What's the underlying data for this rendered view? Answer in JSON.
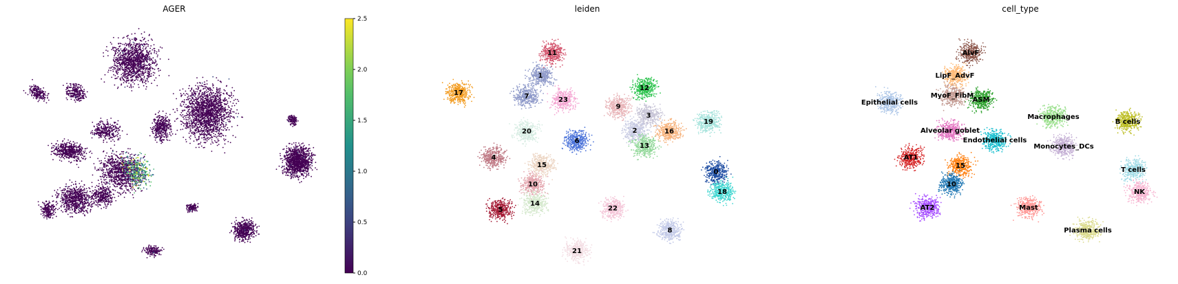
{
  "chart_data": [
    {
      "type": "scatter",
      "title": "AGER",
      "colormap": "viridis",
      "colorbar": {
        "min": 0.0,
        "max": 2.5,
        "ticks": [
          "0.0",
          "0.5",
          "1.0",
          "1.5",
          "2.0",
          "2.5"
        ]
      },
      "grid": false
    },
    {
      "type": "scatter",
      "title": "leiden",
      "grid": false,
      "clusters": [
        {
          "label": "0",
          "color": "#1f4ea3"
        },
        {
          "label": "1",
          "color": "#8e99c9"
        },
        {
          "label": "2",
          "color": "#c8cbe3"
        },
        {
          "label": "3",
          "color": "#c9c6d8"
        },
        {
          "label": "4",
          "color": "#c07b86"
        },
        {
          "label": "5",
          "color": "#a51c36"
        },
        {
          "label": "6",
          "color": "#4a72d9"
        },
        {
          "label": "7",
          "color": "#8e99c9"
        },
        {
          "label": "8",
          "color": "#c3cae8"
        },
        {
          "label": "9",
          "color": "#e8b4b8"
        },
        {
          "label": "10",
          "color": "#e4a5ae"
        },
        {
          "label": "11",
          "color": "#d3546d"
        },
        {
          "label": "12",
          "color": "#2ec44f"
        },
        {
          "label": "13",
          "color": "#93d89a"
        },
        {
          "label": "14",
          "color": "#d4e8cc"
        },
        {
          "label": "15",
          "color": "#ecd5c3"
        },
        {
          "label": "16",
          "color": "#f6b27c"
        },
        {
          "label": "17",
          "color": "#f29a1d"
        },
        {
          "label": "18",
          "color": "#3fd6d0"
        },
        {
          "label": "19",
          "color": "#a6e3dc"
        },
        {
          "label": "20",
          "color": "#d6ece2"
        },
        {
          "label": "21",
          "color": "#f3dde3"
        },
        {
          "label": "22",
          "color": "#f4c6d8"
        },
        {
          "label": "23",
          "color": "#f4a6d2"
        }
      ]
    },
    {
      "type": "scatter",
      "title": "cell_type",
      "grid": false,
      "clusters": [
        {
          "label": "AlvF",
          "color": "#8c564b"
        },
        {
          "label": "LipF_AdvF",
          "color": "#ffbb78"
        },
        {
          "label": "MyoF_FibM",
          "color": "#c49c94"
        },
        {
          "label": "ASM",
          "color": "#2ca02c"
        },
        {
          "label": "Epithelial cells",
          "color": "#aec7e8"
        },
        {
          "label": "Macrophages",
          "color": "#98df8a"
        },
        {
          "label": "B cells",
          "color": "#bcbd22"
        },
        {
          "label": "Alveolar goblet",
          "color": "#e377c2"
        },
        {
          "label": "Endothelial cells",
          "color": "#17becf"
        },
        {
          "label": "Monocytes_DCs",
          "color": "#c5b0d5"
        },
        {
          "label": "AT1",
          "color": "#d62728"
        },
        {
          "label": "15",
          "color": "#ff7f0e"
        },
        {
          "label": "10",
          "color": "#1f77b4"
        },
        {
          "label": "T cells",
          "color": "#9edae5"
        },
        {
          "label": "NK",
          "color": "#f7b6d2"
        },
        {
          "label": "AT2",
          "color": "#a64dff"
        },
        {
          "label": "Mast",
          "color": "#ff9896"
        },
        {
          "label": "Plasma cells",
          "color": "#dbdb8d"
        }
      ]
    }
  ]
}
